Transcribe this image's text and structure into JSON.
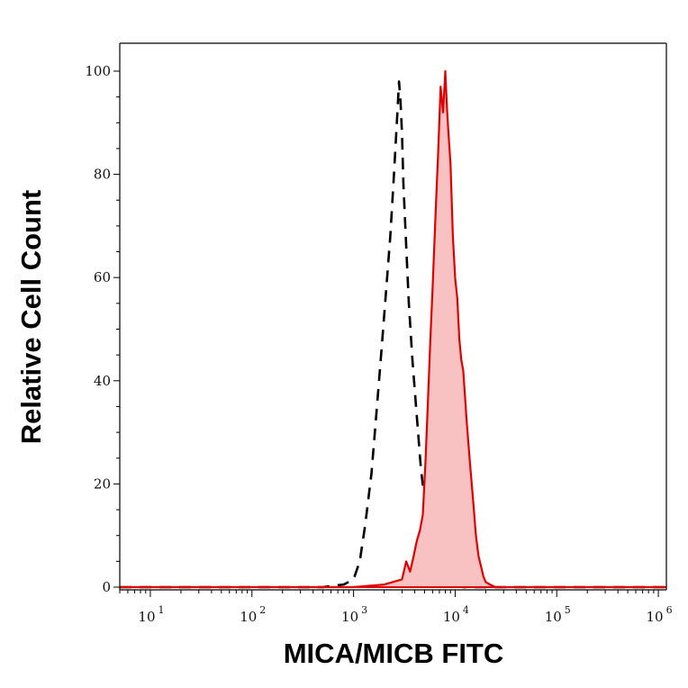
{
  "chart_data": {
    "type": "area",
    "title": "",
    "xlabel": "MICA/MICB FITC",
    "ylabel": "Relative Cell Count",
    "x_scale": "log",
    "xlim": [
      5,
      1200000
    ],
    "ylim": [
      0,
      105
    ],
    "grid": false,
    "legend": "none",
    "x_tick_labels": [
      {
        "base": "10",
        "exp": "1",
        "value": 10
      },
      {
        "base": "10",
        "exp": "2",
        "value": 100
      },
      {
        "base": "10",
        "exp": "3",
        "value": 1000
      },
      {
        "base": "10",
        "exp": "4",
        "value": 10000
      },
      {
        "base": "10",
        "exp": "5",
        "value": 100000
      },
      {
        "base": "10",
        "exp": "6",
        "value": 1000000
      }
    ],
    "y_tick_labels": [
      {
        "label": "0",
        "value": 0
      },
      {
        "label": "20",
        "value": 20
      },
      {
        "label": "40",
        "value": 40
      },
      {
        "label": "60",
        "value": 60
      },
      {
        "label": "80",
        "value": 80
      },
      {
        "label": "100",
        "value": 100
      }
    ],
    "colors": {
      "sample_line": "#e00000",
      "sample_fill": "#f9c2c2",
      "control_line": "#000000",
      "axis": "#000000"
    },
    "series": [
      {
        "style": "dashed-black",
        "x": [
          5,
          500,
          800,
          1000,
          1150,
          1300,
          1500,
          1700,
          1900,
          2100,
          2300,
          2500,
          2600,
          2700,
          2800,
          2900,
          3000,
          3100,
          3300,
          3500,
          3800,
          4200,
          4600,
          5200,
          6000,
          7000,
          8000,
          9000,
          10000,
          12000,
          20000,
          1200000
        ],
        "y": [
          0,
          0,
          0.5,
          1.5,
          5,
          12,
          22,
          35,
          47,
          58,
          68,
          80,
          86,
          92,
          98,
          94,
          88,
          78,
          66,
          55,
          44,
          33,
          23,
          14,
          8,
          4,
          2,
          1,
          0.5,
          0,
          0,
          0
        ]
      },
      {
        "style": "filled-red",
        "x": [
          5,
          500,
          1000,
          2000,
          3000,
          3300,
          3600,
          3900,
          4200,
          4500,
          4800,
          5100,
          5400,
          5700,
          6000,
          6400,
          6800,
          7200,
          7600,
          8000,
          8300,
          8600,
          9000,
          9500,
          10000,
          10500,
          11000,
          11500,
          12000,
          13000,
          14000,
          15000,
          16000,
          17000,
          18000,
          19000,
          20000,
          22000,
          25000,
          30000,
          1200000
        ],
        "y": [
          0,
          0,
          0,
          0.5,
          1.5,
          5,
          3,
          6,
          9,
          11,
          14,
          24,
          36,
          48,
          58,
          72,
          84,
          97,
          92,
          100,
          93,
          88,
          82,
          68,
          60,
          56,
          48,
          44,
          42,
          32,
          24,
          17,
          10,
          6,
          4,
          2,
          1,
          0.5,
          0,
          0,
          0
        ]
      }
    ]
  }
}
